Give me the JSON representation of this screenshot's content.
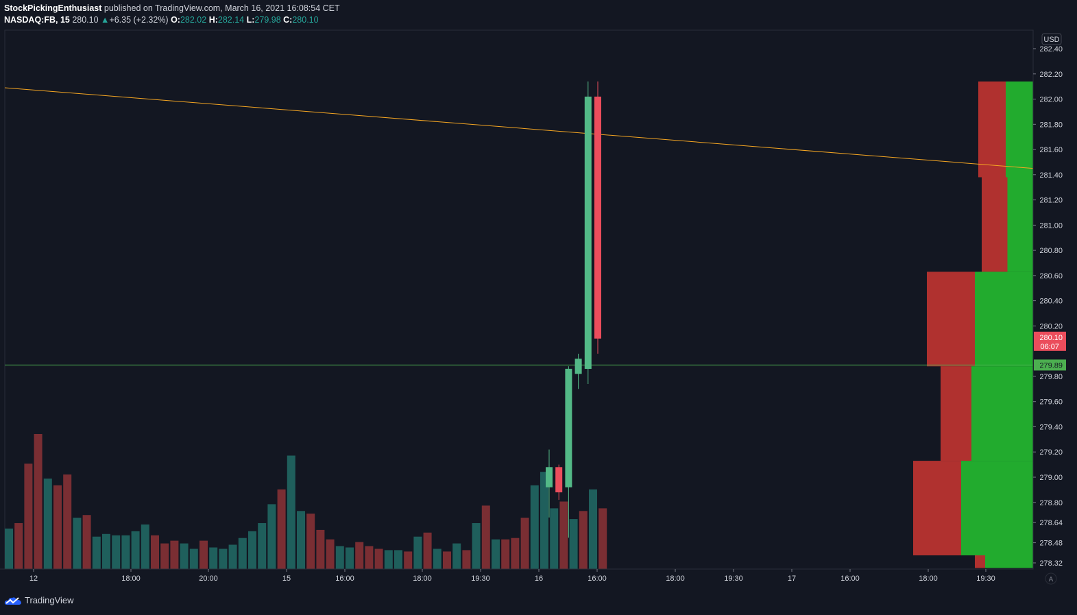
{
  "header": {
    "author": "StockPickingEnthusiast",
    "published_text": "published on TradingView.com, March 16, 2021 16:08:54 CET",
    "symbol": "NASDAQ:FB, 15",
    "price": "280.10",
    "change": "+6.35 (+2.32%)",
    "o_label": "O:",
    "o_value": "282.02",
    "h_label": "H:",
    "h_value": "282.14",
    "l_label": "L:",
    "l_value": "279.98",
    "c_label": "C:",
    "c_value": "280.10"
  },
  "branding": {
    "logo_text": "TradingView"
  },
  "colors": {
    "background": "#131722",
    "up": "#53b987",
    "down": "#eb4d5c",
    "vol_up": "#1f5f5c",
    "vol_down": "#7a2e33",
    "trendline": "#f5a623",
    "hline": "#4caf50",
    "vp_up": "#22ab2e",
    "vp_down": "#b0312f"
  },
  "chart_data": {
    "type": "candlestick",
    "currency_label": "USD",
    "ylim": [
      278.28,
      282.46
    ],
    "price_ticks": [
      "282.40",
      "282.20",
      "282.00",
      "281.80",
      "281.60",
      "281.40",
      "281.20",
      "281.00",
      "280.80",
      "280.60",
      "280.40",
      "280.20",
      "279.80",
      "279.60",
      "279.40",
      "279.20",
      "279.00",
      "278.80",
      "278.64",
      "278.48",
      "278.32"
    ],
    "time_ticks": [
      "12",
      "18:00",
      "20:00",
      "15",
      "16:00",
      "18:00",
      "19:30",
      "16",
      "16:00",
      "18:00",
      "19:30",
      "17",
      "16:00",
      "18:00",
      "19:30"
    ],
    "candles": [
      {
        "o": 278.92,
        "h": 279.22,
        "l": 278.68,
        "c": 279.08
      },
      {
        "o": 279.08,
        "h": 279.1,
        "l": 278.82,
        "c": 278.88
      },
      {
        "o": 278.92,
        "h": 279.88,
        "l": 278.52,
        "c": 279.86
      },
      {
        "o": 279.82,
        "h": 279.98,
        "l": 279.7,
        "c": 279.94
      },
      {
        "o": 279.86,
        "h": 282.14,
        "l": 279.74,
        "c": 282.02
      },
      {
        "o": 282.02,
        "h": 282.14,
        "l": 279.98,
        "c": 280.1
      }
    ],
    "volume_bars": [
      {
        "v": 0.3,
        "d": "up"
      },
      {
        "v": 0.34,
        "d": "down"
      },
      {
        "v": 0.78,
        "d": "down"
      },
      {
        "v": 1.0,
        "d": "down"
      },
      {
        "v": 0.67,
        "d": "up"
      },
      {
        "v": 0.62,
        "d": "down"
      },
      {
        "v": 0.7,
        "d": "down"
      },
      {
        "v": 0.38,
        "d": "up"
      },
      {
        "v": 0.4,
        "d": "down"
      },
      {
        "v": 0.24,
        "d": "up"
      },
      {
        "v": 0.26,
        "d": "up"
      },
      {
        "v": 0.25,
        "d": "up"
      },
      {
        "v": 0.25,
        "d": "up"
      },
      {
        "v": 0.28,
        "d": "up"
      },
      {
        "v": 0.33,
        "d": "up"
      },
      {
        "v": 0.25,
        "d": "down"
      },
      {
        "v": 0.19,
        "d": "down"
      },
      {
        "v": 0.21,
        "d": "down"
      },
      {
        "v": 0.19,
        "d": "up"
      },
      {
        "v": 0.15,
        "d": "up"
      },
      {
        "v": 0.21,
        "d": "down"
      },
      {
        "v": 0.16,
        "d": "up"
      },
      {
        "v": 0.15,
        "d": "up"
      },
      {
        "v": 0.18,
        "d": "up"
      },
      {
        "v": 0.23,
        "d": "up"
      },
      {
        "v": 0.28,
        "d": "up"
      },
      {
        "v": 0.34,
        "d": "up"
      },
      {
        "v": 0.48,
        "d": "up"
      },
      {
        "v": 0.59,
        "d": "down"
      },
      {
        "v": 0.84,
        "d": "up"
      },
      {
        "v": 0.43,
        "d": "up"
      },
      {
        "v": 0.41,
        "d": "down"
      },
      {
        "v": 0.29,
        "d": "down"
      },
      {
        "v": 0.22,
        "d": "down"
      },
      {
        "v": 0.17,
        "d": "up"
      },
      {
        "v": 0.16,
        "d": "up"
      },
      {
        "v": 0.2,
        "d": "down"
      },
      {
        "v": 0.17,
        "d": "down"
      },
      {
        "v": 0.15,
        "d": "down"
      },
      {
        "v": 0.14,
        "d": "up"
      },
      {
        "v": 0.14,
        "d": "up"
      },
      {
        "v": 0.13,
        "d": "down"
      },
      {
        "v": 0.24,
        "d": "up"
      },
      {
        "v": 0.27,
        "d": "down"
      },
      {
        "v": 0.15,
        "d": "up"
      },
      {
        "v": 0.13,
        "d": "down"
      },
      {
        "v": 0.19,
        "d": "up"
      },
      {
        "v": 0.14,
        "d": "down"
      },
      {
        "v": 0.34,
        "d": "up"
      },
      {
        "v": 0.47,
        "d": "down"
      },
      {
        "v": 0.22,
        "d": "up"
      },
      {
        "v": 0.22,
        "d": "down"
      },
      {
        "v": 0.23,
        "d": "down"
      },
      {
        "v": 0.38,
        "d": "down"
      },
      {
        "v": 0.62,
        "d": "up"
      },
      {
        "v": 0.72,
        "d": "up"
      },
      {
        "v": 0.45,
        "d": "up"
      },
      {
        "v": 0.5,
        "d": "down"
      },
      {
        "v": 0.37,
        "d": "up"
      },
      {
        "v": 0.43,
        "d": "down"
      },
      {
        "v": 0.59,
        "d": "up"
      },
      {
        "v": 0.45,
        "d": "down"
      }
    ],
    "volume_profile": [
      {
        "from": 281.38,
        "to": 282.14,
        "down": 0.08,
        "up": 0.08
      },
      {
        "from": 280.63,
        "to": 281.38,
        "down": 0.075,
        "up": 0.075
      },
      {
        "from": 279.88,
        "to": 280.63,
        "down": 0.14,
        "up": 0.17
      },
      {
        "from": 279.13,
        "to": 279.88,
        "down": 0.09,
        "up": 0.18
      },
      {
        "from": 278.38,
        "to": 279.13,
        "down": 0.14,
        "up": 0.21
      },
      {
        "from": 278.28,
        "to": 278.38,
        "down": 0.03,
        "up": 0.14
      }
    ],
    "trendline": {
      "from_price": 282.09,
      "to_price": 281.45
    },
    "hline": {
      "price": 279.89,
      "label": "279.89"
    },
    "last_price": {
      "price": 280.1,
      "label": "280.10",
      "countdown": "06:07"
    }
  }
}
